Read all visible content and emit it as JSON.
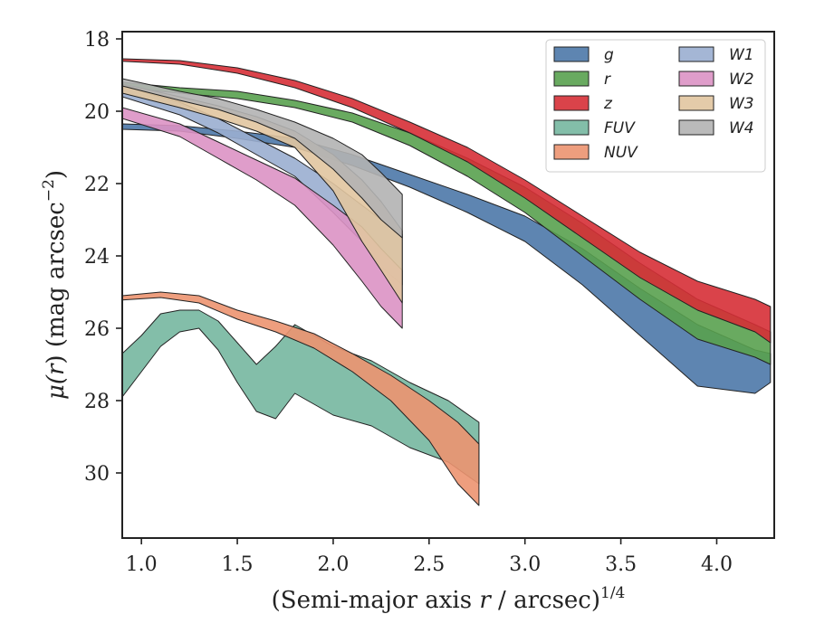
{
  "chart_data": {
    "type": "area",
    "xlabel": "(Semi-major axis r / arcsec)",
    "xlabel_prefix": "(Semi-major axis ",
    "xlabel_var": "r",
    "xlabel_suffix": " / arcsec)",
    "xlabel_exponent": "1/4",
    "ylabel": "μ(r) (mag arcsec−2)",
    "ylabel_mu": "μ(",
    "ylabel_var": "r",
    "ylabel_rest": ") (mag arcsec",
    "ylabel_exponent": "−2",
    "ylabel_close": ")",
    "xlim": [
      0.9,
      4.3
    ],
    "ylim": [
      31.8,
      17.8
    ],
    "y_inverted": true,
    "xticks": [
      1.0,
      1.5,
      2.0,
      2.5,
      3.0,
      3.5,
      4.0
    ],
    "xtick_labels": [
      "1.0",
      "1.5",
      "2.0",
      "2.5",
      "3.0",
      "3.5",
      "4.0"
    ],
    "yticks": [
      18,
      20,
      22,
      24,
      26,
      28,
      30
    ],
    "ytick_labels": [
      "18",
      "20",
      "22",
      "24",
      "26",
      "28",
      "30"
    ],
    "grid": false,
    "legend_position": "top-right",
    "legend_columns": 2,
    "series": [
      {
        "name": "g",
        "color": "#4c78a8",
        "upper": [
          [
            0.9,
            20.35
          ],
          [
            1.2,
            20.4
          ],
          [
            1.5,
            20.55
          ],
          [
            1.8,
            20.75
          ],
          [
            2.1,
            21.2
          ],
          [
            2.4,
            21.75
          ],
          [
            2.7,
            22.3
          ],
          [
            3.0,
            22.9
          ],
          [
            3.3,
            23.8
          ],
          [
            3.6,
            24.9
          ],
          [
            3.9,
            25.9
          ],
          [
            4.2,
            26.6
          ],
          [
            4.28,
            26.7
          ]
        ],
        "lower": [
          [
            0.9,
            20.5
          ],
          [
            1.2,
            20.55
          ],
          [
            1.5,
            20.75
          ],
          [
            1.8,
            21.0
          ],
          [
            2.1,
            21.5
          ],
          [
            2.4,
            22.1
          ],
          [
            2.7,
            22.8
          ],
          [
            3.0,
            23.6
          ],
          [
            3.3,
            24.8
          ],
          [
            3.6,
            26.2
          ],
          [
            3.9,
            27.6
          ],
          [
            4.2,
            27.8
          ],
          [
            4.28,
            27.5
          ]
        ]
      },
      {
        "name": "r",
        "color": "#59a14f",
        "upper": [
          [
            0.9,
            19.2
          ],
          [
            1.2,
            19.35
          ],
          [
            1.5,
            19.45
          ],
          [
            1.8,
            19.7
          ],
          [
            2.1,
            20.05
          ],
          [
            2.4,
            20.6
          ],
          [
            2.7,
            21.3
          ],
          [
            3.0,
            22.1
          ],
          [
            3.3,
            23.1
          ],
          [
            3.6,
            24.2
          ],
          [
            3.9,
            25.2
          ],
          [
            4.2,
            25.9
          ],
          [
            4.28,
            26.1
          ]
        ],
        "lower": [
          [
            0.9,
            19.35
          ],
          [
            1.2,
            19.5
          ],
          [
            1.5,
            19.65
          ],
          [
            1.8,
            19.9
          ],
          [
            2.1,
            20.3
          ],
          [
            2.4,
            20.95
          ],
          [
            2.7,
            21.8
          ],
          [
            3.0,
            22.8
          ],
          [
            3.3,
            24.0
          ],
          [
            3.6,
            25.2
          ],
          [
            3.9,
            26.3
          ],
          [
            4.2,
            26.8
          ],
          [
            4.28,
            27.0
          ]
        ]
      },
      {
        "name": "z",
        "color": "#d62f36",
        "upper": [
          [
            0.9,
            18.55
          ],
          [
            1.2,
            18.6
          ],
          [
            1.5,
            18.8
          ],
          [
            1.8,
            19.15
          ],
          [
            2.1,
            19.65
          ],
          [
            2.4,
            20.3
          ],
          [
            2.7,
            21.0
          ],
          [
            3.0,
            21.9
          ],
          [
            3.3,
            22.9
          ],
          [
            3.6,
            23.9
          ],
          [
            3.9,
            24.7
          ],
          [
            4.2,
            25.2
          ],
          [
            4.28,
            25.4
          ]
        ],
        "lower": [
          [
            0.9,
            18.62
          ],
          [
            1.2,
            18.7
          ],
          [
            1.5,
            18.95
          ],
          [
            1.8,
            19.35
          ],
          [
            2.1,
            19.9
          ],
          [
            2.4,
            20.6
          ],
          [
            2.7,
            21.4
          ],
          [
            3.0,
            22.4
          ],
          [
            3.3,
            23.5
          ],
          [
            3.6,
            24.6
          ],
          [
            3.9,
            25.5
          ],
          [
            4.2,
            26.1
          ],
          [
            4.28,
            26.4
          ]
        ]
      },
      {
        "name": "FUV",
        "color": "#76b7a0",
        "upper": [
          [
            0.9,
            26.7
          ],
          [
            1.0,
            26.2
          ],
          [
            1.1,
            25.6
          ],
          [
            1.2,
            25.5
          ],
          [
            1.3,
            25.5
          ],
          [
            1.4,
            25.8
          ],
          [
            1.5,
            26.4
          ],
          [
            1.6,
            27.0
          ],
          [
            1.7,
            26.5
          ],
          [
            1.8,
            25.9
          ],
          [
            1.9,
            26.2
          ],
          [
            2.0,
            26.5
          ],
          [
            2.2,
            26.9
          ],
          [
            2.4,
            27.5
          ],
          [
            2.6,
            28.0
          ],
          [
            2.76,
            28.6
          ]
        ],
        "lower": [
          [
            0.9,
            27.9
          ],
          [
            1.0,
            27.2
          ],
          [
            1.1,
            26.5
          ],
          [
            1.2,
            26.1
          ],
          [
            1.3,
            26.0
          ],
          [
            1.4,
            26.6
          ],
          [
            1.5,
            27.5
          ],
          [
            1.6,
            28.3
          ],
          [
            1.7,
            28.5
          ],
          [
            1.8,
            27.8
          ],
          [
            1.9,
            28.1
          ],
          [
            2.0,
            28.4
          ],
          [
            2.2,
            28.7
          ],
          [
            2.4,
            29.3
          ],
          [
            2.6,
            29.7
          ],
          [
            2.76,
            30.3
          ]
        ]
      },
      {
        "name": "NUV",
        "color": "#ec9470",
        "upper": [
          [
            0.9,
            25.1
          ],
          [
            1.1,
            25.0
          ],
          [
            1.3,
            25.1
          ],
          [
            1.5,
            25.5
          ],
          [
            1.7,
            25.8
          ],
          [
            1.9,
            26.15
          ],
          [
            2.1,
            26.7
          ],
          [
            2.3,
            27.3
          ],
          [
            2.5,
            28.0
          ],
          [
            2.65,
            28.6
          ],
          [
            2.76,
            29.2
          ]
        ],
        "lower": [
          [
            0.9,
            25.22
          ],
          [
            1.1,
            25.15
          ],
          [
            1.3,
            25.3
          ],
          [
            1.5,
            25.75
          ],
          [
            1.7,
            26.1
          ],
          [
            1.9,
            26.55
          ],
          [
            2.1,
            27.2
          ],
          [
            2.3,
            28.0
          ],
          [
            2.5,
            29.1
          ],
          [
            2.65,
            30.3
          ],
          [
            2.76,
            30.9
          ]
        ]
      },
      {
        "name": "W1",
        "color": "#9aaed0",
        "upper": [
          [
            0.9,
            19.3
          ],
          [
            1.2,
            19.75
          ],
          [
            1.4,
            20.2
          ],
          [
            1.6,
            20.75
          ],
          [
            1.8,
            21.3
          ],
          [
            2.0,
            22.0
          ],
          [
            2.15,
            22.6
          ],
          [
            2.25,
            23.0
          ],
          [
            2.36,
            23.4
          ]
        ],
        "lower": [
          [
            0.9,
            19.6
          ],
          [
            1.2,
            20.1
          ],
          [
            1.4,
            20.6
          ],
          [
            1.6,
            21.2
          ],
          [
            1.8,
            21.8
          ],
          [
            2.0,
            22.8
          ],
          [
            2.15,
            23.6
          ],
          [
            2.25,
            24.3
          ],
          [
            2.36,
            24.8
          ]
        ]
      },
      {
        "name": "W2",
        "color": "#dc92c4",
        "upper": [
          [
            0.9,
            19.9
          ],
          [
            1.2,
            20.35
          ],
          [
            1.4,
            20.85
          ],
          [
            1.6,
            21.35
          ],
          [
            1.8,
            21.85
          ],
          [
            2.0,
            22.6
          ],
          [
            2.15,
            23.2
          ],
          [
            2.25,
            23.8
          ],
          [
            2.36,
            24.4
          ]
        ],
        "lower": [
          [
            0.9,
            20.2
          ],
          [
            1.2,
            20.7
          ],
          [
            1.4,
            21.3
          ],
          [
            1.6,
            21.9
          ],
          [
            1.8,
            22.6
          ],
          [
            2.0,
            23.7
          ],
          [
            2.15,
            24.7
          ],
          [
            2.25,
            25.4
          ],
          [
            2.36,
            26.0
          ]
        ]
      },
      {
        "name": "W3",
        "color": "#e1c5a0",
        "upper": [
          [
            0.9,
            19.25
          ],
          [
            1.2,
            19.6
          ],
          [
            1.4,
            19.85
          ],
          [
            1.6,
            20.15
          ],
          [
            1.8,
            20.55
          ],
          [
            2.0,
            21.2
          ],
          [
            2.15,
            21.9
          ],
          [
            2.25,
            22.5
          ],
          [
            2.36,
            23.3
          ]
        ],
        "lower": [
          [
            0.9,
            19.5
          ],
          [
            1.2,
            19.9
          ],
          [
            1.4,
            20.2
          ],
          [
            1.6,
            20.55
          ],
          [
            1.8,
            21.0
          ],
          [
            2.0,
            22.2
          ],
          [
            2.15,
            23.6
          ],
          [
            2.25,
            24.4
          ],
          [
            2.36,
            25.3
          ]
        ]
      },
      {
        "name": "W4",
        "color": "#b3b3b3",
        "upper": [
          [
            0.9,
            19.1
          ],
          [
            1.2,
            19.45
          ],
          [
            1.4,
            19.65
          ],
          [
            1.6,
            19.95
          ],
          [
            1.8,
            20.3
          ],
          [
            2.0,
            20.75
          ],
          [
            2.15,
            21.2
          ],
          [
            2.25,
            21.7
          ],
          [
            2.36,
            22.3
          ]
        ],
        "lower": [
          [
            0.9,
            19.3
          ],
          [
            1.2,
            19.7
          ],
          [
            1.4,
            19.95
          ],
          [
            1.6,
            20.3
          ],
          [
            1.8,
            20.75
          ],
          [
            2.0,
            21.6
          ],
          [
            2.15,
            22.4
          ],
          [
            2.25,
            23.0
          ],
          [
            2.36,
            23.5
          ]
        ]
      }
    ]
  }
}
